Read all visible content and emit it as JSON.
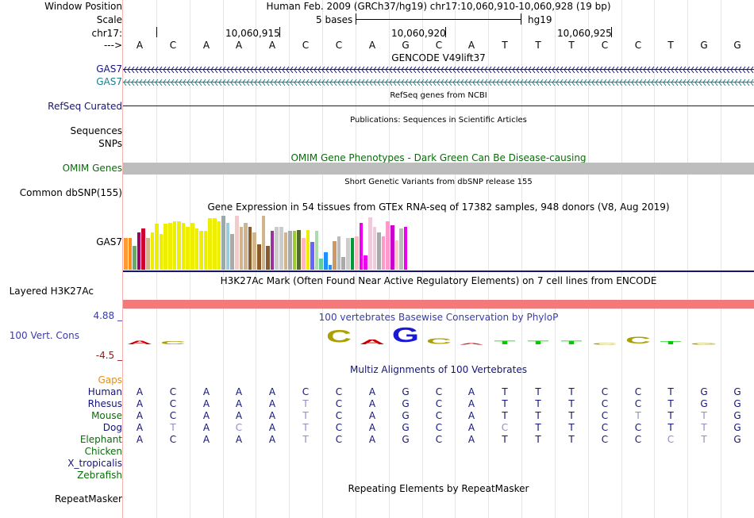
{
  "labels": {
    "window_position": "Window Position",
    "scale": "Scale",
    "chrom": "chr17:",
    "arrow": "--->",
    "gas7_a": "GAS7",
    "gas7_b": "GAS7",
    "refseq": "RefSeq Curated",
    "sequences": "Sequences",
    "snps": "SNPs",
    "omim": "OMIM Genes",
    "dbsnp": "Common dbSNP(155)",
    "gtex": "GAS7",
    "h3k27ac": "Layered H3K27Ac",
    "phylop_max": "4.88 _",
    "phylop_name": "100 Vert. Cons",
    "phylop_min": "-4.5 _",
    "gaps": "Gaps",
    "repeatmasker": "RepeatMasker"
  },
  "colors": {
    "navy": "#14147a",
    "teal": "#1b7f8c",
    "omim_green": "#0b6b0b",
    "conserv_blue": "#3b3ba8",
    "gaps_orange": "#e0901a",
    "omim_grey": "#bdbdbd",
    "h3k27ac_salmon": "#f27a7a",
    "light_base": "#8e8ec4"
  },
  "header": {
    "assembly": "Human Feb. 2009 (GRCh37/hg19)   chr17:10,060,910-10,060,928 (19 bp)",
    "scale_text": "5 bases",
    "scale_db": "hg19",
    "ruler_ticks": [
      "10,060,915",
      "10,060,920",
      "10,060,925"
    ]
  },
  "reference_sequence": [
    "A",
    "C",
    "A",
    "A",
    "A",
    "C",
    "C",
    "A",
    "G",
    "C",
    "A",
    "T",
    "T",
    "T",
    "C",
    "C",
    "T",
    "G",
    "G"
  ],
  "tracks": {
    "gencode_title": "GENCODE V49lift37",
    "refseq_title": "RefSeq genes from NCBI",
    "publications_title": "Publications: Sequences in Scientific Articles",
    "omim_title": "OMIM Gene Phenotypes - Dark Green Can Be Disease-causing",
    "dbsnp_title": "Short Genetic Variants from dbSNP release 155",
    "gtex_title": "Gene Expression in 54 tissues from GTEx RNA-seq of 17382 samples, 948 donors (V8, Aug 2019)",
    "h3k27ac_title": "H3K27Ac Mark (Often Found Near Active Regulatory Elements) on 7 cell lines from ENCODE",
    "phylop_title": "100 vertebrates Basewise Conservation by PhyloP",
    "multiz_title": "Multiz Alignments of 100 Vertebrates",
    "repeatmasker_title": "Repeating Elements by RepeatMasker"
  },
  "gtex_expression": {
    "values": [
      0.55,
      0.55,
      0.42,
      0.65,
      0.72,
      0.55,
      0.65,
      0.8,
      0.62,
      0.8,
      0.82,
      0.85,
      0.85,
      0.82,
      0.75,
      0.82,
      0.72,
      0.68,
      0.68,
      0.9,
      0.9,
      0.85,
      0.95,
      0.82,
      0.62,
      0.95,
      0.75,
      0.82,
      0.75,
      0.65,
      0.45,
      0.95,
      0.42,
      0.68,
      0.75,
      0.75,
      0.65,
      0.68,
      0.68,
      0.7,
      0.55,
      0.7,
      0.48,
      0.68,
      0.2,
      0.3,
      0.08,
      0.5,
      0.58,
      0.22,
      0.55,
      0.55,
      0.58,
      0.82,
      0.25,
      0.92,
      0.75,
      0.65,
      0.58,
      0.85,
      0.78,
      0.52,
      0.72,
      0.75
    ],
    "colors": [
      "#ff9933",
      "#ff8c1a",
      "#66aa66",
      "#990066",
      "#cc0033",
      "#d2b48c",
      "#eeee00",
      "#eeee00",
      "#eeee00",
      "#eeee00",
      "#eeee00",
      "#eeee00",
      "#eeee00",
      "#eeee00",
      "#eeee00",
      "#eeee00",
      "#eeee00",
      "#eeee00",
      "#eeee00",
      "#eeee00",
      "#eeee00",
      "#eeee00",
      "#99aaaa",
      "#99ccdd",
      "#aaaaaa",
      "#eecccc",
      "#d2b48c",
      "#d2b48c",
      "#8b5a2b",
      "#d2b48c",
      "#8b5a2b",
      "#d2b48c",
      "#8b5a2b",
      "#993399",
      "#cccccc",
      "#cccccc",
      "#d2b48c",
      "#aaaaaa",
      "#99cc33",
      "#556b2f",
      "#ffb6c1",
      "#eeee00",
      "#6666ff",
      "#aaddaa",
      "#66cc99",
      "#1e90ff",
      "#1e90ff",
      "#cc9966",
      "#bbbbbb",
      "#aaaaaa",
      "#cccccc",
      "#009933",
      "#ffb6c1",
      "#ee00ee",
      "#ee00ee",
      "#eeccdd",
      "#eeccdd",
      "#aaaaaa",
      "#ff99cc",
      "#ff99cc",
      "#cc00cc",
      "#ffcccc",
      "#bbbbbb",
      "#ee00ee"
    ]
  },
  "species": [
    {
      "name": "Human",
      "seq": [
        "A",
        "C",
        "A",
        "A",
        "A",
        "C",
        "C",
        "A",
        "G",
        "C",
        "A",
        "T",
        "T",
        "T",
        "C",
        "C",
        "T",
        "G",
        "G"
      ],
      "light": []
    },
    {
      "name": "Rhesus",
      "seq": [
        "A",
        "C",
        "A",
        "A",
        "A",
        "T",
        "C",
        "A",
        "G",
        "C",
        "A",
        "T",
        "T",
        "T",
        "C",
        "C",
        "T",
        "G",
        "G"
      ],
      "light": [
        5
      ]
    },
    {
      "name": "Mouse",
      "seq": [
        "A",
        "C",
        "A",
        "A",
        "A",
        "T",
        "C",
        "A",
        "G",
        "C",
        "A",
        "T",
        "T",
        "T",
        "C",
        "T",
        "T",
        "T",
        "G"
      ],
      "light": [
        5,
        15,
        17
      ]
    },
    {
      "name": "Dog",
      "seq": [
        "A",
        "T",
        "A",
        "C",
        "A",
        "T",
        "C",
        "A",
        "G",
        "C",
        "A",
        "C",
        "T",
        "T",
        "C",
        "C",
        "T",
        "T",
        "G"
      ],
      "light": [
        1,
        3,
        5,
        11,
        17
      ]
    },
    {
      "name": "Elephant",
      "seq": [
        "A",
        "C",
        "A",
        "A",
        "A",
        "T",
        "C",
        "A",
        "G",
        "C",
        "A",
        "T",
        "T",
        "T",
        "C",
        "C",
        "C",
        "T",
        "G"
      ],
      "light": [
        5,
        16,
        17
      ]
    },
    {
      "name": "Chicken",
      "seq": [],
      "light": []
    },
    {
      "name": "X_tropicalis",
      "seq": [],
      "light": []
    },
    {
      "name": "Zebrafish",
      "seq": [],
      "light": []
    }
  ],
  "phylop_logo": [
    {
      "letter": "A",
      "color": "#cc0000",
      "height": 0.25
    },
    {
      "letter": "C",
      "color": "#aaa000",
      "height": 0.22
    },
    {
      "letter": "",
      "color": "#000000",
      "height": 0
    },
    {
      "letter": "",
      "color": "#000000",
      "height": 0
    },
    {
      "letter": "",
      "color": "#000000",
      "height": 0
    },
    {
      "letter": "",
      "color": "#000000",
      "height": 0
    },
    {
      "letter": "C",
      "color": "#aaa000",
      "height": 0.85
    },
    {
      "letter": "A",
      "color": "#cc0000",
      "height": 0.3
    },
    {
      "letter": "G",
      "color": "#1a1ad6",
      "height": 1.0
    },
    {
      "letter": "C",
      "color": "#aaa000",
      "height": 0.4
    },
    {
      "letter": "A",
      "color": "#cc0000",
      "height": 0.1
    },
    {
      "letter": "T",
      "color": "#00cc00",
      "height": 0.25
    },
    {
      "letter": "T",
      "color": "#00cc00",
      "height": 0.25
    },
    {
      "letter": "T",
      "color": "#00cc00",
      "height": 0.25
    },
    {
      "letter": "C",
      "color": "#aaa000",
      "height": 0.12
    },
    {
      "letter": "C",
      "color": "#aaa000",
      "height": 0.45
    },
    {
      "letter": "T",
      "color": "#00cc00",
      "height": 0.22
    },
    {
      "letter": "G",
      "color": "#aaa000",
      "height": 0.12
    },
    {
      "letter": "",
      "color": "#000000",
      "height": 0
    }
  ]
}
